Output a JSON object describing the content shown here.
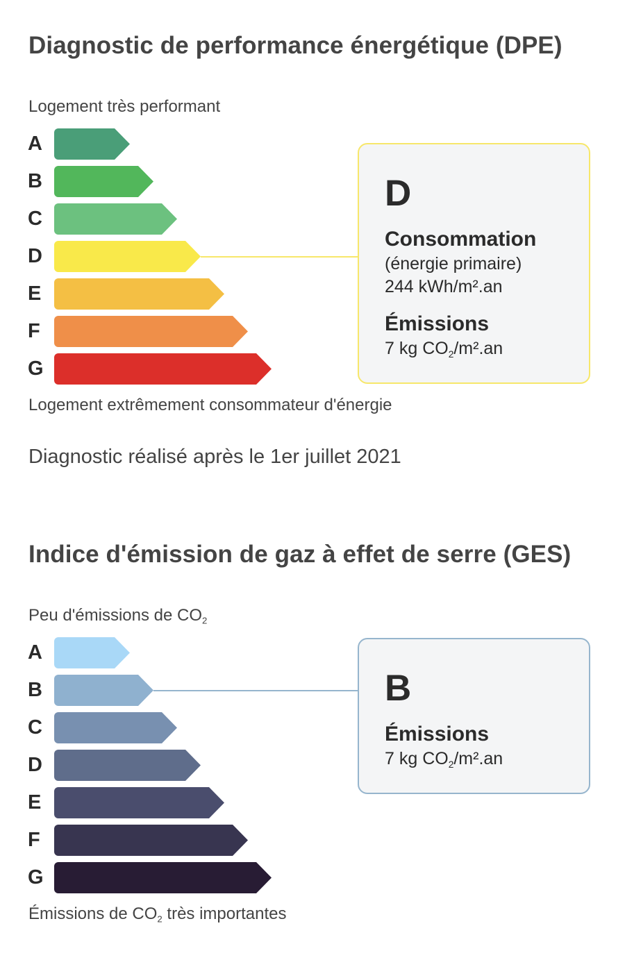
{
  "dpe": {
    "title": "Diagnostic de performance énergétique (DPE)",
    "top_caption": "Logement très performant",
    "bottom_caption": "Logement extrêmement consommateur d'énergie",
    "classes": [
      {
        "letter": "A",
        "color": "#4a9e78"
      },
      {
        "letter": "B",
        "color": "#52b75b"
      },
      {
        "letter": "C",
        "color": "#6cc17f"
      },
      {
        "letter": "D",
        "color": "#f9e94a"
      },
      {
        "letter": "E",
        "color": "#f4bf44"
      },
      {
        "letter": "F",
        "color": "#ef8f49"
      },
      {
        "letter": "G",
        "color": "#dc2f2a"
      }
    ],
    "current_class": "D",
    "box": {
      "grade": "D",
      "consumption_label": "Consommation",
      "consumption_sub": "(énergie primaire)",
      "consumption_value": "244 kWh/m².an",
      "emissions_label": "Émissions",
      "emissions_value_prefix": "7 kg CO",
      "emissions_value_sub": "2",
      "emissions_value_suffix": "/m².an",
      "border_color": "#f7e76a"
    },
    "date_note": "Diagnostic réalisé après le 1er juillet 2021"
  },
  "ges": {
    "title": "Indice d'émission de gaz à effet de serre (GES)",
    "top_caption_prefix": "Peu d'émissions de CO",
    "top_caption_sub": "2",
    "bottom_caption_prefix": "Émissions de CO",
    "bottom_caption_sub": "2",
    "bottom_caption_suffix": " très importantes",
    "classes": [
      {
        "letter": "A",
        "color": "#a9d8f7"
      },
      {
        "letter": "B",
        "color": "#8fb1cf"
      },
      {
        "letter": "C",
        "color": "#7890b0"
      },
      {
        "letter": "D",
        "color": "#5f6d8b"
      },
      {
        "letter": "E",
        "color": "#4a4d6d"
      },
      {
        "letter": "F",
        "color": "#383550"
      },
      {
        "letter": "G",
        "color": "#281c34"
      }
    ],
    "current_class": "B",
    "box": {
      "grade": "B",
      "emissions_label": "Émissions",
      "emissions_value_prefix": "7 kg CO",
      "emissions_value_sub": "2",
      "emissions_value_suffix": "/m².an",
      "border_color": "#96b5cd"
    }
  }
}
